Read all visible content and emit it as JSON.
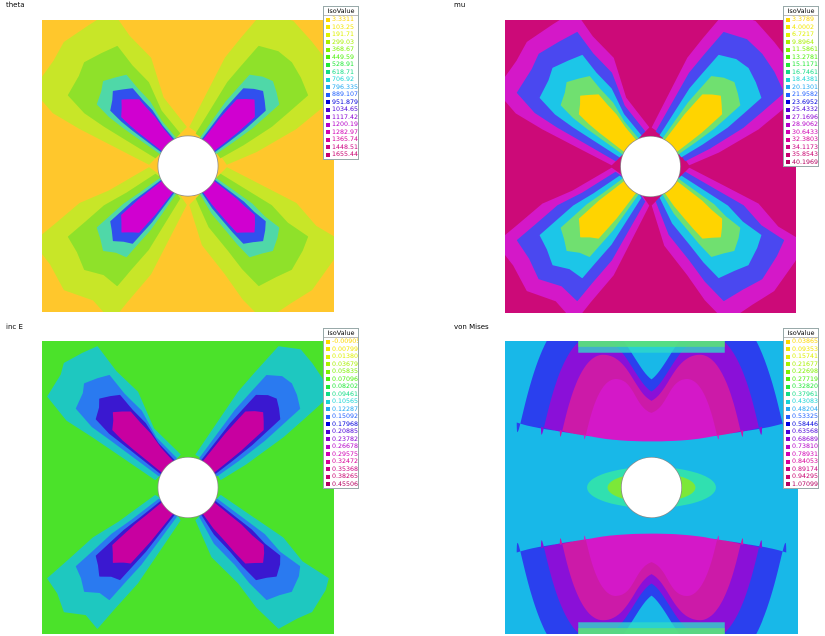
{
  "panels": [
    {
      "title": "theta",
      "legend_title": "IsoValue",
      "bg": "#ffc72c",
      "hole": "#ffffff",
      "layers": [
        {
          "c": "#c8e628",
          "s": 1.0
        },
        {
          "c": "#8fe12a",
          "s": 0.55
        },
        {
          "c": "#4fd8a8",
          "s": 0.25
        },
        {
          "c": "#3050ee",
          "s": 0.14
        },
        {
          "c": "#d000d0",
          "s": 0.07
        }
      ],
      "legend": [
        {
          "v": "3.3311",
          "c": "#ffd700"
        },
        {
          "v": "103.25",
          "c": "#f2e600"
        },
        {
          "v": "191.71",
          "c": "#ddf000"
        },
        {
          "v": "299.03",
          "c": "#a8f000"
        },
        {
          "v": "368.67",
          "c": "#7ff200"
        },
        {
          "v": "449.59",
          "c": "#4cf00a"
        },
        {
          "v": "528.91",
          "c": "#22e838"
        },
        {
          "v": "618.71",
          "c": "#14dc86"
        },
        {
          "v": "706.92",
          "c": "#18d4d4"
        },
        {
          "v": "796.335",
          "c": "#20a8f2"
        },
        {
          "v": "889.107",
          "c": "#2060ff"
        },
        {
          "v": "951.879",
          "c": "#0000dc"
        },
        {
          "v": "1034.65",
          "c": "#4a00d8"
        },
        {
          "v": "1117.42",
          "c": "#8800d4"
        },
        {
          "v": "1200.19",
          "c": "#b400c8"
        },
        {
          "v": "1282.97",
          "c": "#d000b4"
        },
        {
          "v": "1365.74",
          "c": "#d80098"
        },
        {
          "v": "1448.51",
          "c": "#cc0080"
        },
        {
          "v": "1655.44",
          "c": "#c8006e"
        }
      ]
    },
    {
      "title": "mu",
      "legend_title": "IsoValue",
      "bg": "#cc0a78",
      "hole": "#ffffff",
      "layers": [
        {
          "c": "#d418c8",
          "s": 1.0
        },
        {
          "c": "#4a48f0",
          "s": 0.72
        },
        {
          "c": "#1cc6e8",
          "s": 0.45
        },
        {
          "c": "#70e070",
          "s": 0.24
        },
        {
          "c": "#ffd400",
          "s": 0.1
        }
      ],
      "legend": [
        {
          "v": "3.3789",
          "c": "#ffd700"
        },
        {
          "v": "4.0002",
          "c": "#f2e600"
        },
        {
          "v": "6.7217",
          "c": "#ddf000"
        },
        {
          "v": "9.8964",
          "c": "#a8f000"
        },
        {
          "v": "11.5861",
          "c": "#7ff200"
        },
        {
          "v": "13.2781",
          "c": "#4cf00a"
        },
        {
          "v": "15.1171",
          "c": "#22e838"
        },
        {
          "v": "16.7461",
          "c": "#14dc86"
        },
        {
          "v": "18.4381",
          "c": "#18d4d4"
        },
        {
          "v": "20.1301",
          "c": "#20a8f2"
        },
        {
          "v": "21.9582",
          "c": "#2060ff"
        },
        {
          "v": "23.6952",
          "c": "#0000dc"
        },
        {
          "v": "25.4332",
          "c": "#4a00d8"
        },
        {
          "v": "27.1696",
          "c": "#8800d4"
        },
        {
          "v": "28.9062",
          "c": "#b400c8"
        },
        {
          "v": "30.6433",
          "c": "#d000b4"
        },
        {
          "v": "32.3803",
          "c": "#d80098"
        },
        {
          "v": "34.1173",
          "c": "#cc0080"
        },
        {
          "v": "35.8543",
          "c": "#c8006e"
        },
        {
          "v": "40.1969",
          "c": "#b40060"
        }
      ]
    },
    {
      "title": "inc E",
      "legend_title": "IsoValue",
      "bg": "#4be22a",
      "hole": "#ffffff",
      "layers": [
        {
          "c": "#1ec8c0",
          "s": 1.0
        },
        {
          "c": "#2a7af0",
          "s": 0.55
        },
        {
          "c": "#3a18d0",
          "s": 0.3
        },
        {
          "c": "#c800a0",
          "s": 0.14
        }
      ],
      "legend": [
        {
          "v": "-0.00905",
          "c": "#ffd700"
        },
        {
          "v": "0.0079965",
          "c": "#f2e600"
        },
        {
          "v": "0.0138006",
          "c": "#ddf000"
        },
        {
          "v": "0.0367948",
          "c": "#a8f000"
        },
        {
          "v": "0.0583577",
          "c": "#7ff200"
        },
        {
          "v": "0.0709619",
          "c": "#4cf00a"
        },
        {
          "v": "0.0820229",
          "c": "#22e838"
        },
        {
          "v": "0.0946131",
          "c": "#14dc86"
        },
        {
          "v": "0.105651",
          "c": "#18d4d4"
        },
        {
          "v": "0.122874",
          "c": "#20a8f2"
        },
        {
          "v": "0.150923",
          "c": "#2060ff"
        },
        {
          "v": "0.179689",
          "c": "#0000dc"
        },
        {
          "v": "0.208855",
          "c": "#4a00d8"
        },
        {
          "v": "0.237821",
          "c": "#8800d4"
        },
        {
          "v": "0.266788",
          "c": "#b400c8"
        },
        {
          "v": "0.295754",
          "c": "#d000b4"
        },
        {
          "v": "0.32472",
          "c": "#d80098"
        },
        {
          "v": "0.353686",
          "c": "#cc0080"
        },
        {
          "v": "0.382652",
          "c": "#c8006e"
        },
        {
          "v": "0.455067",
          "c": "#b40060"
        }
      ]
    },
    {
      "title": "von Mises",
      "legend_title": "IsoValue",
      "bg": "#18b8e8",
      "hole": "#ffffff",
      "layers": [
        {
          "c": "#2a40ee",
          "s": 1.0
        },
        {
          "c": "#8a10d8",
          "s": 0.82
        },
        {
          "c": "#cc1aa8",
          "s": 0.68
        },
        {
          "c": "#d418c8",
          "s": 0.5
        }
      ],
      "legend": [
        {
          "v": "0.0386573",
          "c": "#ffd700"
        },
        {
          "v": "0.0935343",
          "c": "#f2e600"
        },
        {
          "v": "0.15741",
          "c": "#ddf000"
        },
        {
          "v": "0.21677",
          "c": "#a8f000"
        },
        {
          "v": "0.226982",
          "c": "#7ff200"
        },
        {
          "v": "0.277194",
          "c": "#4cf00a"
        },
        {
          "v": "0.328208",
          "c": "#22e838"
        },
        {
          "v": "0.379619",
          "c": "#14dc86"
        },
        {
          "v": "0.430831",
          "c": "#18d4d4"
        },
        {
          "v": "0.482043",
          "c": "#20a8f2"
        },
        {
          "v": "0.533256",
          "c": "#2060ff"
        },
        {
          "v": "0.584468",
          "c": "#0000dc"
        },
        {
          "v": "0.635681",
          "c": "#4a00d8"
        },
        {
          "v": "0.686893",
          "c": "#8800d4"
        },
        {
          "v": "0.738105",
          "c": "#b400c8"
        },
        {
          "v": "0.789317",
          "c": "#d000b4"
        },
        {
          "v": "0.84053",
          "c": "#d80098"
        },
        {
          "v": "0.891742",
          "c": "#cc0080"
        },
        {
          "v": "0.942954",
          "c": "#c8006e"
        },
        {
          "v": "1.07099",
          "c": "#b40060"
        }
      ]
    }
  ]
}
